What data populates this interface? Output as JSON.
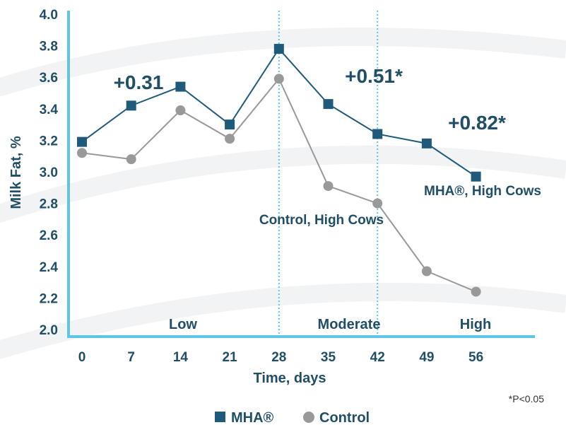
{
  "chart_data": {
    "type": "line",
    "xlabel": "Time, days",
    "ylabel": "Milk Fat, %",
    "x": [
      0,
      7,
      14,
      21,
      28,
      35,
      42,
      49,
      56
    ],
    "x_tick_labels": [
      "0",
      "7",
      "14",
      "21",
      "28",
      "35",
      "42",
      "49",
      "56"
    ],
    "ylim": [
      2.0,
      4.0
    ],
    "y_tick_labels": [
      "2.0",
      "2.2",
      "2.4",
      "2.6",
      "2.8",
      "3.0",
      "3.2",
      "3.4",
      "3.6",
      "3.8",
      "4.0"
    ],
    "series": [
      {
        "name": "MHA®",
        "marker": "square",
        "color": "#1f5a7a",
        "values": [
          3.19,
          3.42,
          3.54,
          3.3,
          3.78,
          3.43,
          3.24,
          3.18,
          2.97
        ]
      },
      {
        "name": "Control",
        "marker": "circle",
        "color": "#999999",
        "values": [
          3.12,
          3.08,
          3.39,
          3.21,
          3.59,
          2.91,
          2.8,
          2.37,
          2.24
        ]
      }
    ],
    "dividers": [
      28,
      42
    ],
    "regions": [
      "Low",
      "Moderate",
      "High"
    ],
    "annotations": [
      "+0.31",
      "+0.51*",
      "+0.82*"
    ],
    "series_labels": [
      "Control, High Cows",
      "MHA®, High Cows"
    ],
    "footnote": "*P<0.05",
    "legend": [
      "MHA®",
      "Control"
    ],
    "legend_position": "bottom",
    "grid": false,
    "axis_color": "#5bc6e8"
  }
}
